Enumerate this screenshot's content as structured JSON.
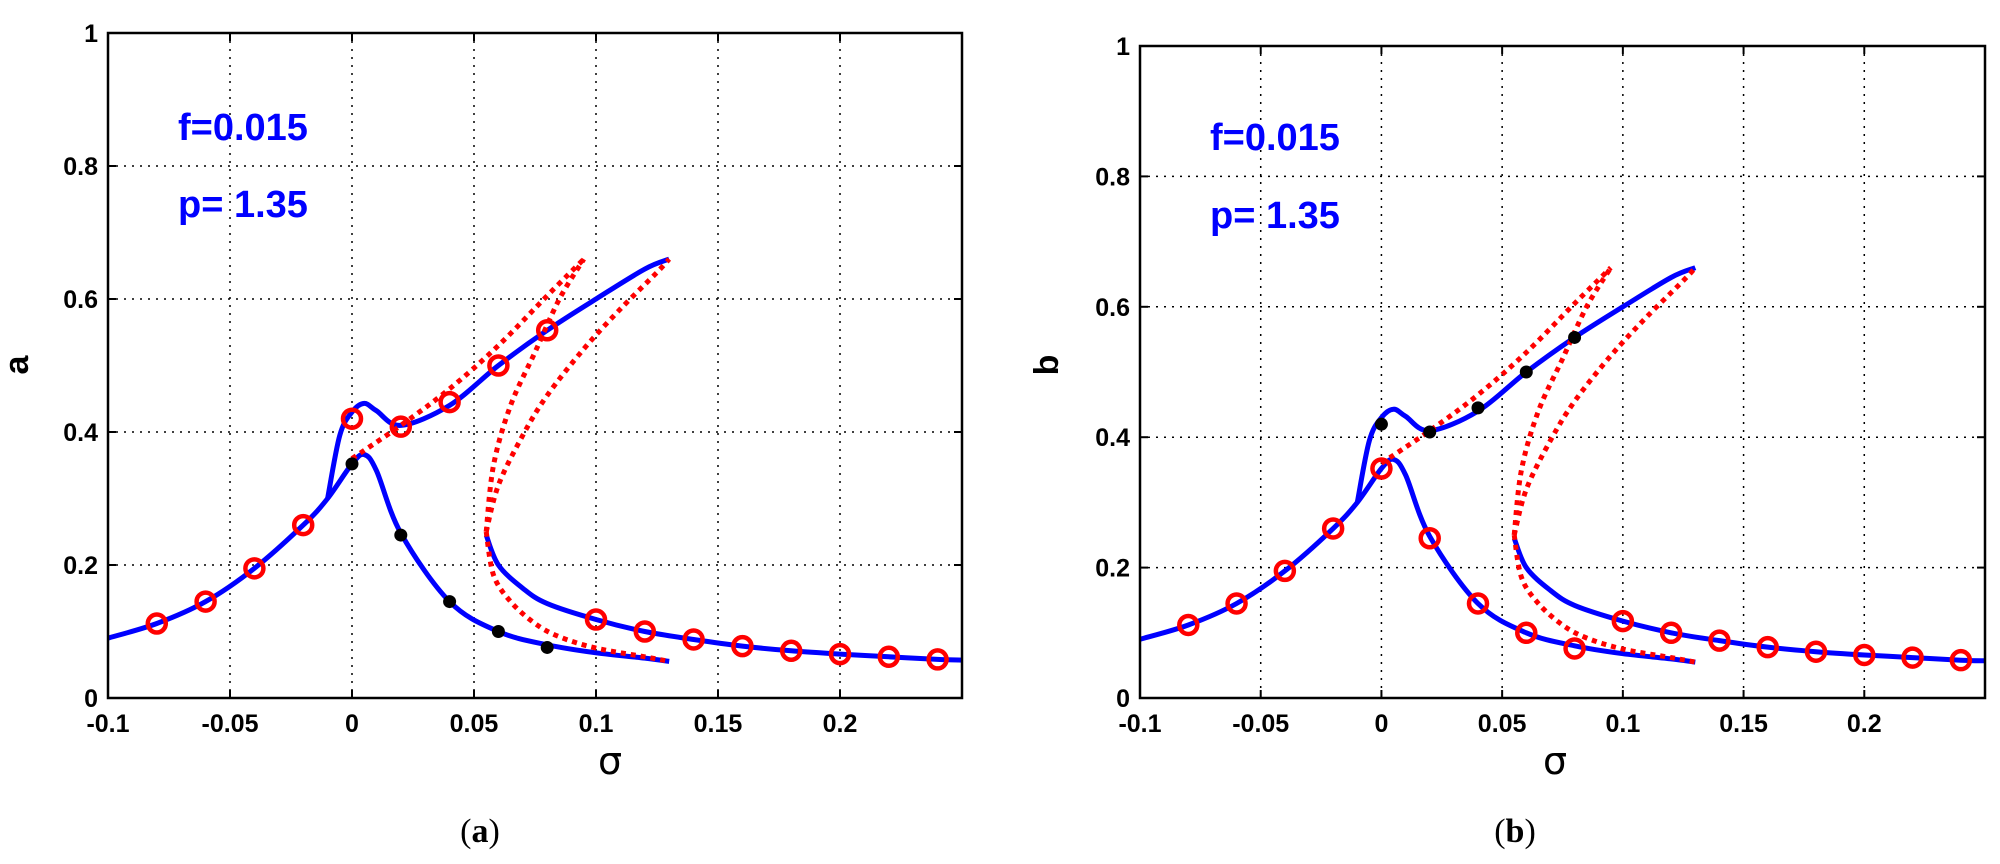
{
  "chart_data": [
    {
      "type": "line",
      "caption_letter": "a",
      "caption_open": "(",
      "caption_close": ")",
      "ylabel": "a",
      "xlabel": "σ",
      "xlim": [
        -0.1,
        0.25
      ],
      "ylim": [
        0,
        1
      ],
      "xticks": [
        "-0.1",
        "-0.05",
        "0",
        "0.05",
        "0.1",
        "0.15",
        "0.2"
      ],
      "xtick_values": [
        -0.1,
        -0.05,
        0,
        0.05,
        0.1,
        0.15,
        0.2
      ],
      "yticks": [
        "0",
        "0.2",
        "0.4",
        "0.6",
        "0.8",
        "1"
      ],
      "ytick_values": [
        0,
        0.2,
        0.4,
        0.6,
        0.8,
        1
      ],
      "grid": true,
      "annotations": [
        "f=0.015",
        "p= 1.35"
      ],
      "colors": {
        "stable": "#0000ff",
        "unstable": "#ff0000",
        "numeric_open": "#ff0000",
        "numeric_filled": "#000000"
      },
      "series": [
        {
          "name": "stable-lower-branch",
          "style": "solid",
          "x": [
            -0.1,
            -0.08,
            -0.06,
            -0.04,
            -0.02,
            -0.01,
            0,
            0.005,
            0.01,
            0.02,
            0.04,
            0.06,
            0.08,
            0.1,
            0.12,
            0.13
          ],
          "y": [
            0.09,
            0.112,
            0.145,
            0.195,
            0.26,
            0.3,
            0.352,
            0.366,
            0.342,
            0.248,
            0.145,
            0.1,
            0.08,
            0.068,
            0.06,
            0.055
          ]
        },
        {
          "name": "stable-upper-branch",
          "style": "solid",
          "x": [
            -0.01,
            -0.005,
            0,
            0.005,
            0.01,
            0.02,
            0.04,
            0.06,
            0.08,
            0.1,
            0.12,
            0.13
          ],
          "y": [
            0.3,
            0.395,
            0.43,
            0.443,
            0.432,
            0.41,
            0.44,
            0.5,
            0.553,
            0.6,
            0.645,
            0.66
          ]
        },
        {
          "name": "stable-right-branch",
          "style": "solid",
          "x": [
            0.055,
            0.06,
            0.07,
            0.08,
            0.1,
            0.12,
            0.14,
            0.16,
            0.18,
            0.2,
            0.22,
            0.24,
            0.25
          ],
          "y": [
            0.245,
            0.2,
            0.165,
            0.142,
            0.118,
            0.1,
            0.088,
            0.078,
            0.071,
            0.066,
            0.062,
            0.058,
            0.057
          ]
        },
        {
          "name": "unstable-upper",
          "style": "dotted",
          "x": [
            0.0,
            0.02,
            0.04,
            0.06,
            0.08,
            0.095
          ],
          "y": [
            0.36,
            0.41,
            0.465,
            0.53,
            0.605,
            0.66
          ]
        },
        {
          "name": "unstable-middle",
          "style": "dotted",
          "x": [
            0.055,
            0.058,
            0.065,
            0.075,
            0.085,
            0.095
          ],
          "y": [
            0.25,
            0.35,
            0.44,
            0.52,
            0.6,
            0.66
          ]
        },
        {
          "name": "unstable-lower",
          "style": "dotted",
          "x": [
            0.055,
            0.058,
            0.065,
            0.075,
            0.085,
            0.1,
            0.12,
            0.13
          ],
          "y": [
            0.25,
            0.185,
            0.145,
            0.112,
            0.092,
            0.075,
            0.062,
            0.055
          ]
        },
        {
          "name": "unstable-right",
          "style": "dotted",
          "x": [
            0.055,
            0.06,
            0.07,
            0.08,
            0.095,
            0.11,
            0.125,
            0.13
          ],
          "y": [
            0.25,
            0.32,
            0.395,
            0.455,
            0.525,
            0.585,
            0.64,
            0.66
          ]
        }
      ],
      "markers_open": {
        "x": [
          -0.08,
          -0.06,
          -0.04,
          -0.02,
          0,
          0.02,
          0.04,
          0.06,
          0.08,
          0.1,
          0.12,
          0.14,
          0.16,
          0.18,
          0.2,
          0.22,
          0.24
        ],
        "y": [
          0.112,
          0.145,
          0.195,
          0.26,
          0.42,
          0.408,
          0.445,
          0.5,
          0.553,
          0.118,
          0.1,
          0.088,
          0.078,
          0.071,
          0.066,
          0.062,
          0.058
        ]
      },
      "markers_filled": {
        "x": [
          0,
          0.02,
          0.04,
          0.06,
          0.08
        ],
        "y": [
          0.352,
          0.245,
          0.145,
          0.1,
          0.076
        ]
      }
    },
    {
      "type": "line",
      "caption_letter": "b",
      "caption_open": "(",
      "caption_close": ")",
      "ylabel": "b",
      "xlabel": "σ",
      "xlim": [
        -0.1,
        0.25
      ],
      "ylim": [
        0,
        1
      ],
      "xticks": [
        "-0.1",
        "-0.05",
        "0",
        "0.05",
        "0.1",
        "0.15",
        "0.2"
      ],
      "xtick_values": [
        -0.1,
        -0.05,
        0,
        0.05,
        0.1,
        0.15,
        0.2
      ],
      "yticks": [
        "0",
        "0.2",
        "0.4",
        "0.6",
        "0.8",
        "1"
      ],
      "ytick_values": [
        0,
        0.2,
        0.4,
        0.6,
        0.8,
        1
      ],
      "grid": true,
      "annotations": [
        "f=0.015",
        "p= 1.35"
      ],
      "colors": {
        "stable": "#0000ff",
        "unstable": "#ff0000",
        "numeric_open": "#ff0000",
        "numeric_filled": "#000000"
      },
      "series": [
        {
          "name": "stable-lower-branch",
          "style": "solid",
          "x": [
            -0.1,
            -0.08,
            -0.06,
            -0.04,
            -0.02,
            -0.01,
            0,
            0.005,
            0.01,
            0.02,
            0.04,
            0.06,
            0.08,
            0.1,
            0.12,
            0.13
          ],
          "y": [
            0.09,
            0.112,
            0.145,
            0.195,
            0.26,
            0.3,
            0.352,
            0.366,
            0.342,
            0.248,
            0.145,
            0.1,
            0.08,
            0.068,
            0.06,
            0.055
          ]
        },
        {
          "name": "stable-upper-branch",
          "style": "solid",
          "x": [
            -0.01,
            -0.005,
            0,
            0.005,
            0.01,
            0.02,
            0.04,
            0.06,
            0.08,
            0.1,
            0.12,
            0.13
          ],
          "y": [
            0.3,
            0.395,
            0.43,
            0.443,
            0.432,
            0.41,
            0.44,
            0.5,
            0.553,
            0.6,
            0.645,
            0.66
          ]
        },
        {
          "name": "stable-right-branch",
          "style": "solid",
          "x": [
            0.055,
            0.06,
            0.07,
            0.08,
            0.1,
            0.12,
            0.14,
            0.16,
            0.18,
            0.2,
            0.22,
            0.24,
            0.25
          ],
          "y": [
            0.245,
            0.2,
            0.165,
            0.142,
            0.118,
            0.1,
            0.088,
            0.078,
            0.071,
            0.066,
            0.062,
            0.058,
            0.057
          ]
        },
        {
          "name": "unstable-upper",
          "style": "dotted",
          "x": [
            0.0,
            0.02,
            0.04,
            0.06,
            0.08,
            0.095
          ],
          "y": [
            0.36,
            0.41,
            0.465,
            0.53,
            0.605,
            0.66
          ]
        },
        {
          "name": "unstable-middle",
          "style": "dotted",
          "x": [
            0.055,
            0.058,
            0.065,
            0.075,
            0.085,
            0.095
          ],
          "y": [
            0.25,
            0.35,
            0.44,
            0.52,
            0.6,
            0.66
          ]
        },
        {
          "name": "unstable-lower",
          "style": "dotted",
          "x": [
            0.055,
            0.058,
            0.065,
            0.075,
            0.085,
            0.1,
            0.12,
            0.13
          ],
          "y": [
            0.25,
            0.185,
            0.145,
            0.112,
            0.092,
            0.075,
            0.062,
            0.055
          ]
        },
        {
          "name": "unstable-right",
          "style": "dotted",
          "x": [
            0.055,
            0.06,
            0.07,
            0.08,
            0.095,
            0.11,
            0.125,
            0.13
          ],
          "y": [
            0.25,
            0.32,
            0.395,
            0.455,
            0.525,
            0.585,
            0.64,
            0.66
          ]
        }
      ],
      "markers_open": {
        "x": [
          -0.08,
          -0.06,
          -0.04,
          -0.02,
          0,
          0.02,
          0.04,
          0.06,
          0.08,
          0.1,
          0.12,
          0.14,
          0.16,
          0.18,
          0.2,
          0.22,
          0.24
        ],
        "y": [
          0.112,
          0.145,
          0.195,
          0.26,
          0.352,
          0.245,
          0.145,
          0.1,
          0.076,
          0.118,
          0.1,
          0.088,
          0.078,
          0.071,
          0.066,
          0.062,
          0.058
        ]
      },
      "markers_filled": {
        "x": [
          0,
          0.02,
          0.04,
          0.06,
          0.08
        ],
        "y": [
          0.42,
          0.408,
          0.445,
          0.5,
          0.553
        ]
      }
    }
  ]
}
